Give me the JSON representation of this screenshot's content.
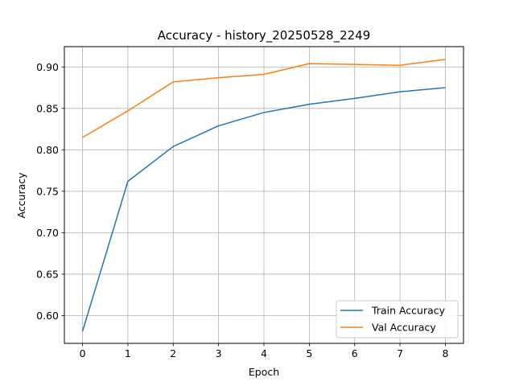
{
  "chart_data": {
    "type": "line",
    "title": "Accuracy - history_20250528_2249",
    "xlabel": "Epoch",
    "ylabel": "Accuracy",
    "x": [
      0,
      1,
      2,
      3,
      4,
      5,
      6,
      7,
      8
    ],
    "xlim": [
      -0.4,
      8.4
    ],
    "ylim": [
      0.5665,
      0.9245
    ],
    "xticks": [
      "0",
      "1",
      "2",
      "3",
      "4",
      "5",
      "6",
      "7",
      "8"
    ],
    "yticks": [
      "0.60",
      "0.65",
      "0.70",
      "0.75",
      "0.80",
      "0.85",
      "0.90"
    ],
    "grid": true,
    "legend_position": "lower-right",
    "series": [
      {
        "name": "Train Accuracy",
        "color": "#1f77b4",
        "values": [
          0.581,
          0.762,
          0.804,
          0.829,
          0.845,
          0.855,
          0.862,
          0.87,
          0.875
        ]
      },
      {
        "name": "Val Accuracy",
        "color": "#ff7f0e",
        "values": [
          0.815,
          0.847,
          0.882,
          0.887,
          0.891,
          0.904,
          0.903,
          0.902,
          0.909
        ]
      }
    ]
  }
}
